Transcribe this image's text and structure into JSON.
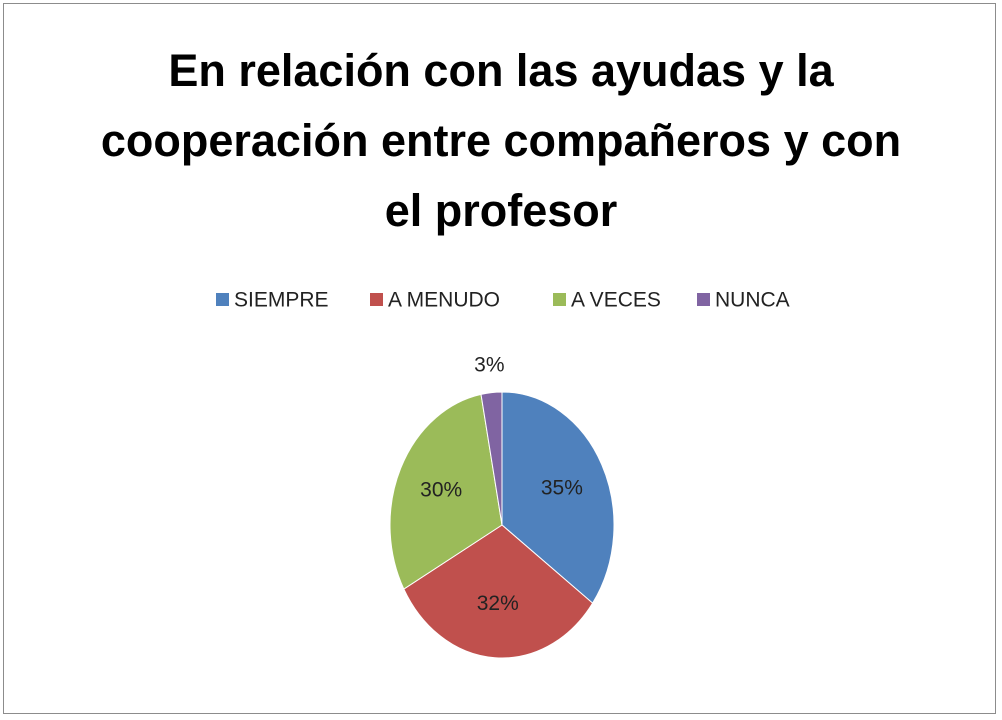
{
  "chart_data": {
    "type": "pie",
    "title": "En relación con las ayudas y la cooperación entre compañeros y con el profesor",
    "categories": [
      "SIEMPRE",
      "A MENUDO",
      "A VECES",
      "NUNCA"
    ],
    "values": [
      35,
      32,
      30,
      3
    ],
    "value_labels": [
      "35%",
      "32%",
      "30%",
      "3%"
    ],
    "colors": [
      "#4f81bd",
      "#c0504d",
      "#9bbb59",
      "#8064a2"
    ],
    "legend": "top"
  }
}
